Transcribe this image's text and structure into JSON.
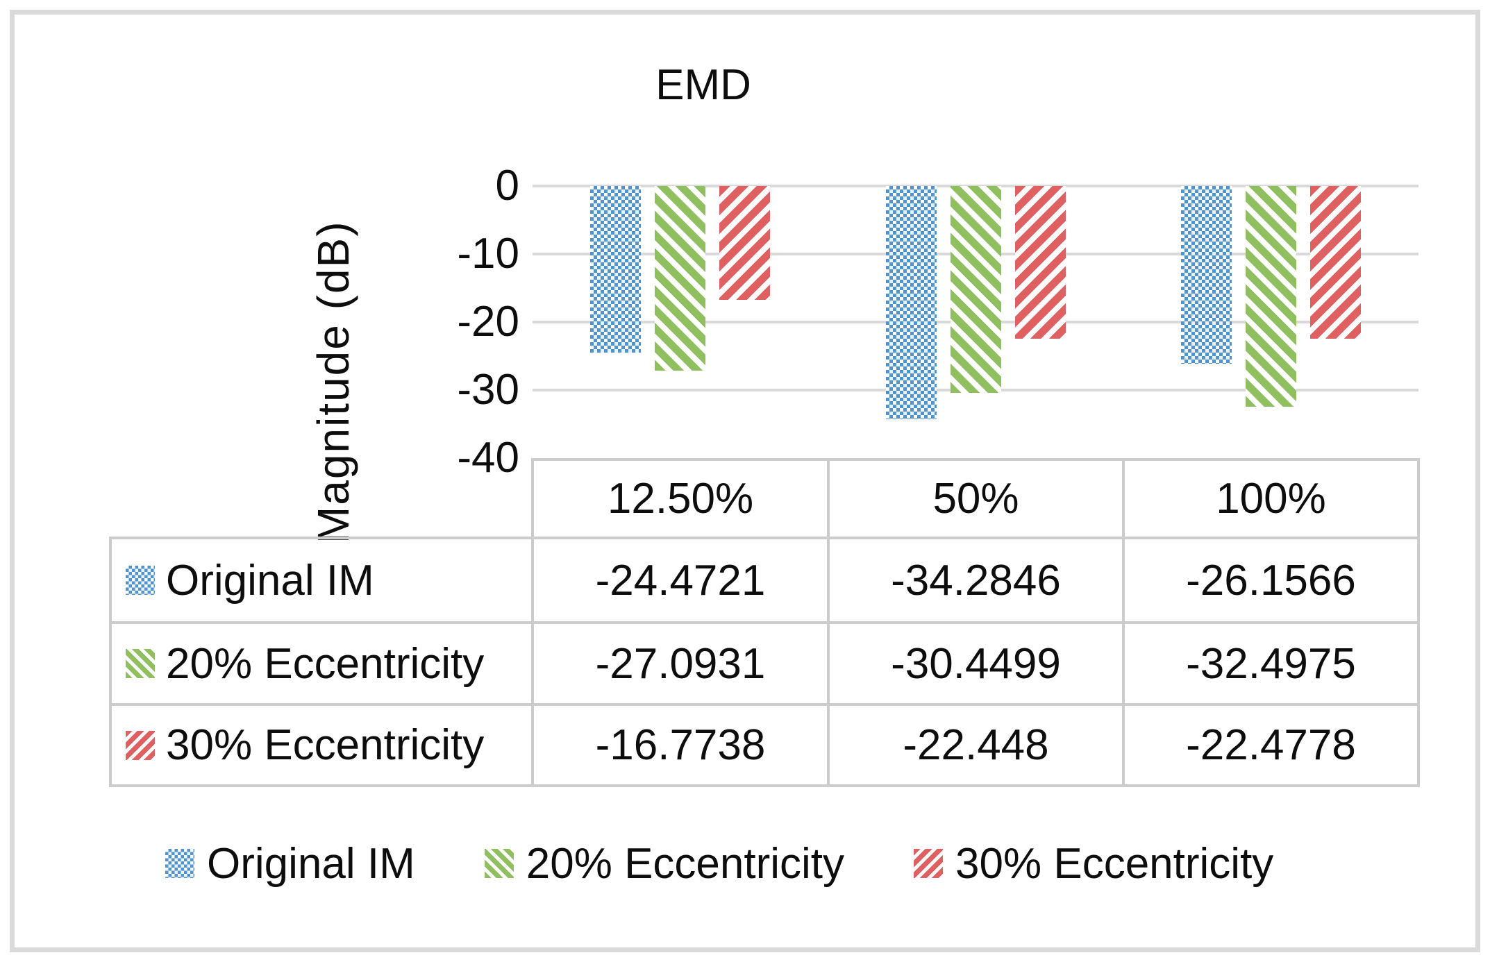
{
  "chart_data": {
    "type": "bar",
    "title": "EMD",
    "xlabel": "",
    "ylabel": "Magnitude (dB)",
    "ylim": [
      -40,
      0
    ],
    "ytick_labels": [
      "0",
      "-10",
      "-20",
      "-30",
      "-40"
    ],
    "grid": "horizontal",
    "legend_position": "bottom",
    "data_table_shown": true,
    "categories": [
      "12.50%",
      "50%",
      "100%"
    ],
    "series": [
      {
        "name": "Original IM",
        "pattern": "blue-dotted-checker",
        "color": "#4f93cf",
        "values": [
          -24.4721,
          -34.2846,
          -26.1566
        ],
        "value_labels": [
          "-24.4721",
          "-34.2846",
          "-26.1566"
        ]
      },
      {
        "name": "20% Eccentricity",
        "pattern": "green-diagonal-down-stripes",
        "color": "#8fbf5f",
        "values": [
          -27.0931,
          -30.4499,
          -32.4975
        ],
        "value_labels": [
          "-27.0931",
          "-30.4499",
          "-32.4975"
        ]
      },
      {
        "name": "30% Eccentricity",
        "pattern": "red-diagonal-up-stripes",
        "color": "#de6060",
        "values": [
          -16.7738,
          -22.448,
          -22.4778
        ],
        "value_labels": [
          "-16.7738",
          "-22.448",
          "-22.4778"
        ]
      }
    ]
  },
  "colors": {
    "gridline": "#d9d9d9",
    "table_border": "#cccccc",
    "figure_frame": "#dadada",
    "text": "#0d0d0d"
  }
}
